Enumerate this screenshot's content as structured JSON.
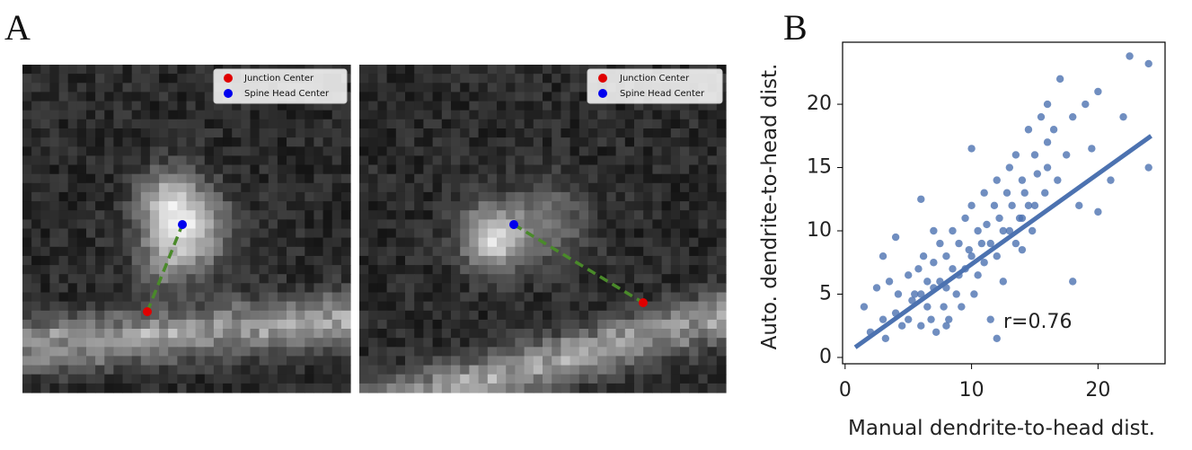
{
  "figure": {
    "panel_a_label": "A",
    "panel_b_label": "B",
    "images": [
      {
        "legend": [
          "Junction Center",
          "Spine Head Center"
        ]
      },
      {
        "legend": [
          "Junction Center",
          "Spine Head Center"
        ]
      }
    ]
  },
  "chart_data": {
    "type": "scatter",
    "x_label": "Manual dendrite-to-head dist.",
    "y_label": "Auto. dendrite-to-head dist.",
    "annotation": "r=0.76",
    "color": "#4c72b0",
    "xlim": [
      -0.2,
      25.3
    ],
    "ylim": [
      -0.5,
      24.9
    ],
    "xticks": [
      0,
      10,
      20
    ],
    "yticks": [
      0,
      5,
      10,
      15,
      20
    ],
    "x": [
      1.5,
      2,
      2.5,
      3,
      3.2,
      3.5,
      4,
      4.2,
      4.5,
      5,
      5,
      5.3,
      5.5,
      5.8,
      6,
      6,
      6.2,
      6.5,
      6.5,
      6.8,
      7,
      7,
      7.2,
      7.5,
      7.5,
      7.8,
      8,
      8,
      8.2,
      8.5,
      8.5,
      8.8,
      9,
      9,
      9.2,
      9.5,
      9.5,
      9.8,
      10,
      10,
      10.2,
      10.5,
      10.5,
      10.8,
      11,
      11,
      11.2,
      11.5,
      11.5,
      11.8,
      12,
      12,
      12.2,
      12.5,
      12.5,
      12.8,
      13,
      13,
      13.2,
      13.5,
      13.5,
      13.8,
      14,
      14,
      14.2,
      14.5,
      14.5,
      14.8,
      15,
      15,
      15.2,
      15.5,
      15.8,
      16,
      16,
      16.5,
      16.8,
      17,
      17.5,
      18,
      18.5,
      19,
      19.5,
      20,
      21,
      22,
      22.5,
      24,
      24,
      4,
      6,
      8,
      10,
      12,
      14,
      16,
      18,
      20,
      3,
      7
    ],
    "y": [
      4,
      2,
      5.5,
      3,
      1.5,
      6,
      3.5,
      5,
      2.5,
      6.5,
      3,
      4.5,
      5,
      7,
      2.5,
      5,
      8,
      4,
      6,
      3,
      7.5,
      5.5,
      2,
      9,
      6,
      4,
      8,
      5.5,
      3,
      10,
      7,
      5,
      9,
      6.5,
      4,
      11,
      7,
      8.5,
      12,
      8,
      5,
      10,
      6.5,
      9,
      13,
      7.5,
      10.5,
      9,
      3,
      12,
      14,
      8,
      11,
      10,
      6,
      13,
      15,
      10,
      12,
      9,
      16,
      11,
      14,
      8.5,
      13,
      18,
      12,
      10,
      16,
      12,
      14.5,
      19,
      13,
      17,
      15,
      18,
      14,
      22,
      16,
      19,
      12,
      20,
      16.5,
      21,
      14,
      19,
      23.8,
      23.2,
      15,
      9.5,
      12.5,
      2.5,
      16.5,
      1.5,
      11,
      20,
      6,
      11.5,
      8,
      10
    ],
    "trendline": {
      "x": [
        0.8,
        24.2
      ],
      "y": [
        0.8,
        17.5
      ]
    }
  }
}
